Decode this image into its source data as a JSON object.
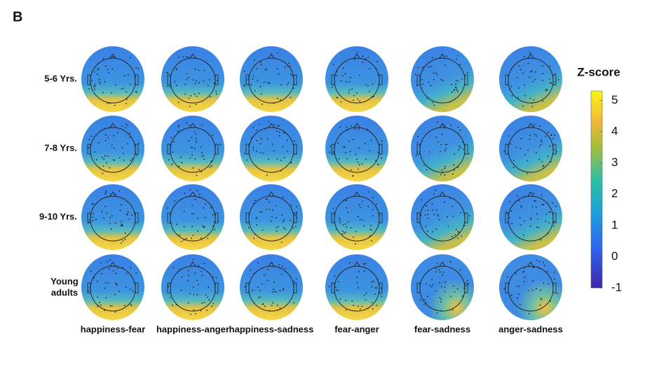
{
  "panel_label": "B",
  "row_labels": [
    "5-6 Yrs.",
    "7-8 Yrs.",
    "9-10 Yrs.",
    "Young adults"
  ],
  "column_labels": [
    "happiness-fear",
    "happiness-anger",
    "happiness-sadness",
    "fear-anger",
    "fear-sadness",
    "anger-sadness"
  ],
  "colorbar": {
    "title": "Z-score",
    "lim": [
      -1,
      5.3
    ],
    "ticks": [
      5,
      4,
      3,
      2,
      1,
      0,
      -1
    ]
  }
}
